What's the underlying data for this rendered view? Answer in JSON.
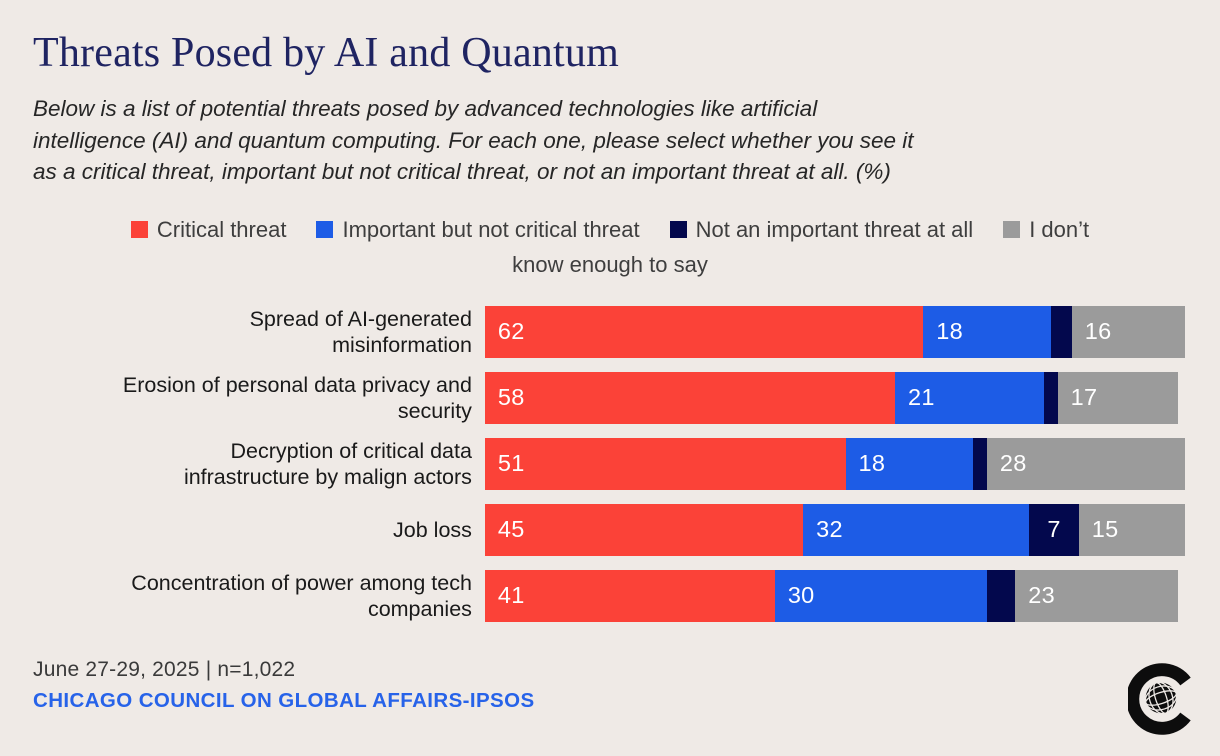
{
  "colors": {
    "background": "#EFEAE6",
    "title": "#1F2462",
    "subtitle_text": "#262626",
    "legend_text": "#3E3E3E",
    "bar_value_text": "#FFFFFF",
    "critical_red": "#FB4238",
    "important_blue": "#1D5CE6",
    "not_important_navy": "#03084D",
    "dont_know_gray": "#9B9B9B",
    "source_link_blue": "#2763E9",
    "logo_black": "#0D0D0D"
  },
  "title": "Threats Posed by AI and Quantum",
  "subtitle": "Below is a list of potential threats posed by advanced technologies like artificial intelligence (AI) and quantum computing. For each one, please select whether you see it as a critical threat, important but not critical threat, or not an important threat at all. (%)",
  "subtitle_lines": [
    "Below is a list of potential threats posed by advanced technologies like artificial",
    "intelligence (AI) and quantum computing. For each one, please select whether you see it",
    "as a critical threat, important but not critical threat, or not an important threat at all. (%)"
  ],
  "legend": {
    "line1_tail": "I don’t",
    "line2": "know enough to say"
  },
  "chart_data": {
    "type": "bar",
    "stacked": true,
    "orientation": "horizontal",
    "xlim": [
      0,
      100
    ],
    "unit": "percent",
    "legend_position": "top",
    "value_labels_inside": true,
    "categories": [
      "Spread of AI-generated misinformation",
      "Erosion of personal data privacy and security",
      "Decryption of critical data infrastructure by malign actors",
      "Job loss",
      "Concentration of power among tech companies"
    ],
    "category_label_lines": [
      [
        "Spread of AI-generated",
        "misinformation"
      ],
      [
        "Erosion of personal data privacy and",
        "security"
      ],
      [
        "Decryption of critical data",
        "infrastructure by malign actors"
      ],
      [
        "Job loss"
      ],
      [
        "Concentration of power among tech",
        "companies"
      ]
    ],
    "series": [
      {
        "name": "Critical threat",
        "color": "#FB4238",
        "values": [
          62,
          58,
          51,
          45,
          41
        ],
        "show_labels": [
          true,
          true,
          true,
          true,
          true
        ]
      },
      {
        "name": "Important but not critical threat",
        "color": "#1D5CE6",
        "values": [
          18,
          21,
          18,
          32,
          30
        ],
        "show_labels": [
          true,
          true,
          true,
          true,
          true
        ]
      },
      {
        "name": "Not an important threat at all",
        "color": "#03084D",
        "values": [
          3,
          2,
          2,
          7,
          4
        ],
        "show_labels": [
          false,
          false,
          false,
          true,
          false
        ],
        "note": "unlabeled values estimated from segment widths"
      },
      {
        "name": "I don’t know enough to say",
        "color": "#9B9B9B",
        "values": [
          16,
          17,
          28,
          15,
          23
        ],
        "show_labels": [
          true,
          true,
          true,
          true,
          true
        ]
      }
    ]
  },
  "footer": {
    "meta": "June 27-29, 2025 | n=1,022",
    "source": "CHICAGO COUNCIL ON GLOBAL AFFAIRS-IPSOS"
  }
}
